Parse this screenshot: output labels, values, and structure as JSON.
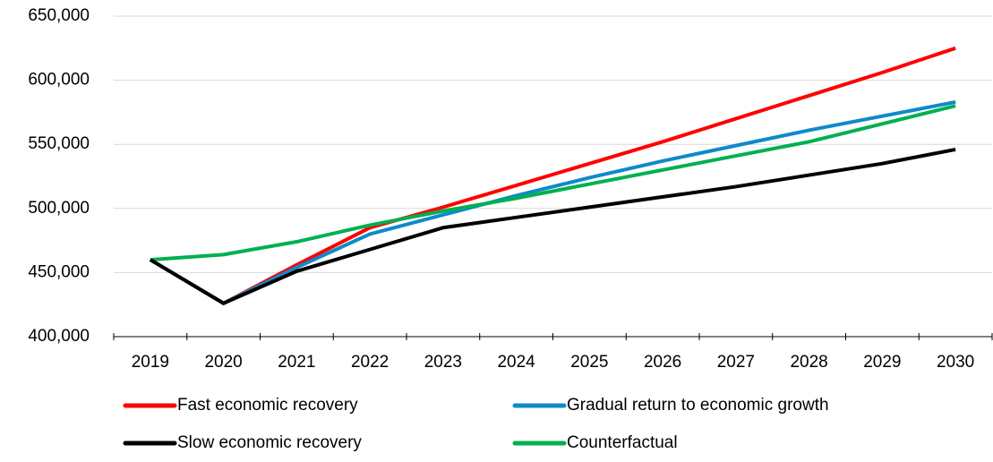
{
  "chart_data": {
    "type": "line",
    "categories": [
      "2019",
      "2020",
      "2021",
      "2022",
      "2023",
      "2024",
      "2025",
      "2026",
      "2027",
      "2028",
      "2029",
      "2030"
    ],
    "series": [
      {
        "name": "Fast economic recovery",
        "color": "#ff0000",
        "values": [
          460000,
          426000,
          456000,
          485000,
          501000,
          518000,
          535000,
          552000,
          570000,
          588000,
          606000,
          625000
        ]
      },
      {
        "name": "Gradual return to economic growth",
        "color": "#0e8ac8",
        "values": [
          460000,
          426000,
          454000,
          480000,
          495000,
          510000,
          524000,
          537000,
          549000,
          561000,
          572000,
          583000
        ]
      },
      {
        "name": "Slow economic recovery",
        "color": "#000000",
        "values": [
          460000,
          426000,
          451000,
          468000,
          485000,
          493000,
          501000,
          509000,
          517000,
          526000,
          535000,
          546000
        ]
      },
      {
        "name": "Counterfactual",
        "color": "#00b050",
        "values": [
          460000,
          464000,
          474000,
          487000,
          498000,
          508000,
          519000,
          530000,
          541000,
          552000,
          566000,
          580000
        ]
      }
    ],
    "ylim": [
      400000,
      650000
    ],
    "yticks": [
      {
        "value": 400000,
        "label": "400,000"
      },
      {
        "value": 450000,
        "label": "450,000"
      },
      {
        "value": 500000,
        "label": "500,000"
      },
      {
        "value": 550000,
        "label": "550,000"
      },
      {
        "value": 600000,
        "label": "600,000"
      },
      {
        "value": 650000,
        "label": "650,000"
      }
    ],
    "grid": true,
    "legend": "bottom"
  }
}
